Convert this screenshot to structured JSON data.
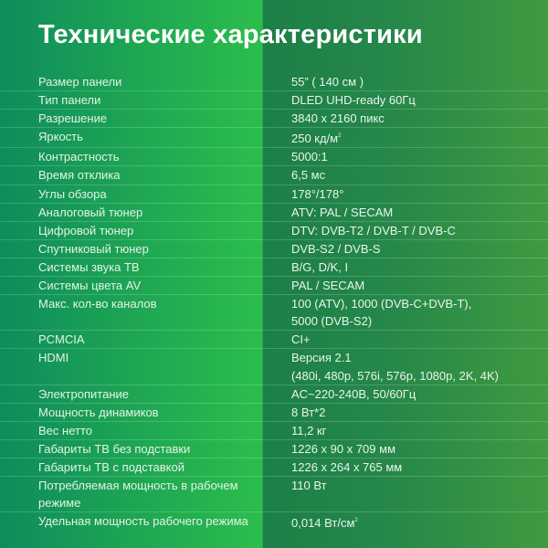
{
  "title": "Технические характеристики",
  "rows": [
    {
      "label": "Размер панели",
      "value": "55” ( 140 см )"
    },
    {
      "label": "Тип панели",
      "value": "DLED UHD-ready 60Гц"
    },
    {
      "label": "Разрешение",
      "value": "3840 x 2160 пикс"
    },
    {
      "label": "Яркость",
      "value": "250 кд/м",
      "sup": "2"
    },
    {
      "label": "Контрастность",
      "value": "5000:1"
    },
    {
      "label": "Время отклика",
      "value": "6,5 мс"
    },
    {
      "label": "Углы обзора",
      "value": "178°/178°"
    },
    {
      "label": "Аналоговый тюнер",
      "value": "ATV: PAL / SECAM"
    },
    {
      "label": "Цифровой тюнер",
      "value": "DTV: DVB-T2 / DVB-T / DVB-C"
    },
    {
      "label": "Спутниковый тюнер",
      "value": "DVB-S2 / DVB-S"
    },
    {
      "label": "Системы звука ТВ",
      "value": "B/G, D/K, I"
    },
    {
      "label": "Системы цвета AV",
      "value": "PAL / SECAM"
    },
    {
      "label": "Макс. кол-во каналов",
      "value": "100 (ATV), 1000 (DVB-C+DVB-T),",
      "value2": "5000 (DVB-S2)"
    },
    {
      "label": "PCMCIA",
      "value": "CI+"
    },
    {
      "label": "HDMI",
      "value": "Версия 2.1",
      "value2": "(480i, 480p, 576i, 576p, 1080p, 2K, 4K)"
    },
    {
      "label": "Электропитание",
      "value": "AC~220-240В, 50/60Гц"
    },
    {
      "label": "Мощность динамиков",
      "value": "8 Вт*2"
    },
    {
      "label": "Вес нетто",
      "value": "11,2 кг"
    },
    {
      "label": "Габариты ТВ без подставки",
      "value": "1226 x 90 x 709 мм"
    },
    {
      "label": "Габариты ТВ с подставкой",
      "value": "1226 x 264 x 765 мм"
    },
    {
      "label": "Потребляемая мощность в рабочем режиме",
      "value": "110 Вт"
    },
    {
      "label": "Удельная мощность рабочего режима",
      "value": "0,014 Вт/см",
      "sup": "2"
    }
  ]
}
